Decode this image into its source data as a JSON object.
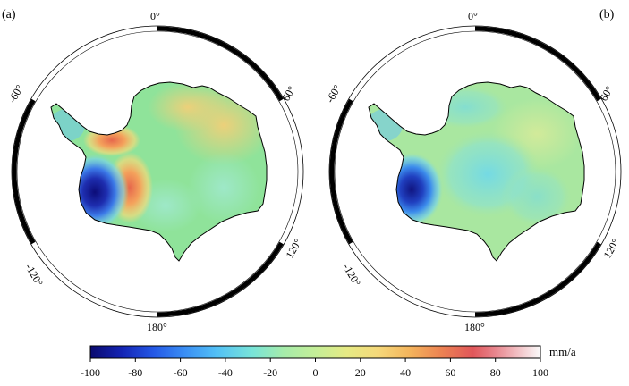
{
  "panels": [
    {
      "label": "(a)",
      "lon_labels": {
        "top": "0°",
        "right_upper": "60°",
        "right_lower": "120°",
        "bottom": "180°",
        "left_lower": "-120°",
        "left_upper": "-60°"
      },
      "land_base_color": "#8fe39a",
      "anomalies": [
        {
          "name": "west-antarctica-low",
          "color": "#1d2ea8",
          "value": -95
        },
        {
          "name": "peninsula-high",
          "color": "#f0a75a",
          "value": 30
        },
        {
          "name": "interior-high",
          "color": "#eb8a52",
          "value": 38
        }
      ]
    },
    {
      "label": "(b)",
      "lon_labels": {
        "top": "0°",
        "right_upper": "60°",
        "right_lower": "120°",
        "bottom": "180°",
        "left_lower": "-120°",
        "left_upper": "-60°"
      },
      "land_base_color": "#a9e7a0",
      "anomalies": [
        {
          "name": "west-antarctica-low",
          "color": "#1d3cb8",
          "value": -90
        },
        {
          "name": "east-interior-cool",
          "color": "#7fdde0",
          "value": -15
        }
      ]
    }
  ],
  "colorbar": {
    "unit": "mm/a",
    "min": -100,
    "max": 100,
    "ticks": [
      "-100",
      "-80",
      "-60",
      "-40",
      "-20",
      "0",
      "20",
      "40",
      "60",
      "80",
      "100"
    ],
    "colors": [
      "#0a0a6e",
      "#1424b4",
      "#2458e6",
      "#3a8ef4",
      "#52c0f6",
      "#78e4d8",
      "#a6ecaa",
      "#d6ec8a",
      "#f5e07a",
      "#f4b45c",
      "#ec8252",
      "#e0565a",
      "#e8868e",
      "#f2c0c4",
      "#fafafa"
    ]
  }
}
